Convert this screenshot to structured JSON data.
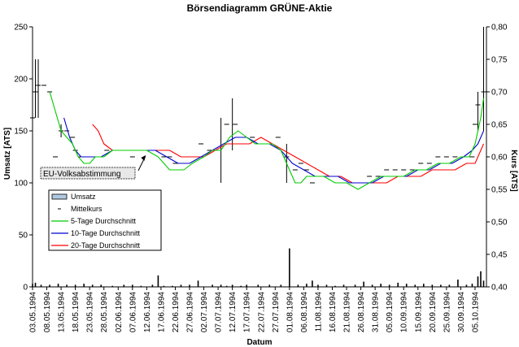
{
  "chart_data": {
    "type": "line",
    "title": "Börsendiagramm GRÜNE-Aktie",
    "xlabel": "Datum",
    "ylabel_left": "Umsatz [ATS]",
    "ylabel_right": "Kurs [ATS]",
    "ylim_left": [
      0,
      250
    ],
    "ylim_right": [
      0.4,
      0.8
    ],
    "yticks_left": [
      "0",
      "50",
      "100",
      "150",
      "200",
      "250"
    ],
    "yticks_right": [
      "0,40",
      "0,45",
      "0,50",
      "0,55",
      "0,60",
      "0,65",
      "0,70",
      "0,75",
      "0,80"
    ],
    "x_start_day": 0,
    "x_end_day": 159,
    "xticks": [
      {
        "day": 0,
        "label": "03.05.1994"
      },
      {
        "day": 5,
        "label": "08.05.1994"
      },
      {
        "day": 10,
        "label": "13.05.1994"
      },
      {
        "day": 15,
        "label": "18.05.1994"
      },
      {
        "day": 20,
        "label": "23.05.1994"
      },
      {
        "day": 25,
        "label": "28.05.1994"
      },
      {
        "day": 30,
        "label": "02.06.1994"
      },
      {
        "day": 35,
        "label": "07.06.1994"
      },
      {
        "day": 40,
        "label": "12.06.1994"
      },
      {
        "day": 45,
        "label": "17.06.1994"
      },
      {
        "day": 50,
        "label": "22.06.1994"
      },
      {
        "day": 55,
        "label": "27.06.1994"
      },
      {
        "day": 60,
        "label": "02.07.1994"
      },
      {
        "day": 65,
        "label": "07.07.1994"
      },
      {
        "day": 70,
        "label": "12.07.1994"
      },
      {
        "day": 75,
        "label": "17.07.1994"
      },
      {
        "day": 80,
        "label": "22.07.1994"
      },
      {
        "day": 85,
        "label": "27.07.1994"
      },
      {
        "day": 90,
        "label": "01.08.1994"
      },
      {
        "day": 95,
        "label": "06.08.1994"
      },
      {
        "day": 100,
        "label": "11.08.1994"
      },
      {
        "day": 105,
        "label": "16.08.1994"
      },
      {
        "day": 110,
        "label": "21.08.1994"
      },
      {
        "day": 115,
        "label": "26.08.1994"
      },
      {
        "day": 120,
        "label": "31.08.1994"
      },
      {
        "day": 125,
        "label": "05.09.1994"
      },
      {
        "day": 130,
        "label": "10.09.1994"
      },
      {
        "day": 135,
        "label": "15.09.1994"
      },
      {
        "day": 140,
        "label": "20.09.1994"
      },
      {
        "day": 145,
        "label": "25.09.1994"
      },
      {
        "day": 150,
        "label": "30.09.1994"
      },
      {
        "day": 155,
        "label": "05.10.1994"
      }
    ],
    "legend": [
      {
        "key": "umsatz",
        "label": "Umsatz"
      },
      {
        "key": "mittel",
        "label": "Mittelkurs"
      },
      {
        "key": "ma5",
        "label": "5-Tage Durchschnitt"
      },
      {
        "key": "ma10",
        "label": "10-Tage Durchschnitt"
      },
      {
        "key": "ma20",
        "label": "20-Tage Durchschnitt"
      }
    ],
    "colors": {
      "ma5": "#00cc00",
      "ma10": "#0000cc",
      "ma20": "#ff0000",
      "umsatz": "#000000",
      "mittel": "#000000"
    },
    "annotation": {
      "text": "EU-Volksabstimmung",
      "day": 40
    },
    "umsatz": [
      [
        0,
        3
      ],
      [
        1,
        4
      ],
      [
        3,
        2
      ],
      [
        6,
        2
      ],
      [
        9,
        3
      ],
      [
        12,
        2
      ],
      [
        15,
        2
      ],
      [
        18,
        3
      ],
      [
        21,
        2
      ],
      [
        24,
        2
      ],
      [
        28,
        1
      ],
      [
        32,
        2
      ],
      [
        35,
        2
      ],
      [
        38,
        1
      ],
      [
        42,
        2
      ],
      [
        44,
        11
      ],
      [
        46,
        1
      ],
      [
        49,
        1
      ],
      [
        52,
        2
      ],
      [
        55,
        2
      ],
      [
        58,
        6
      ],
      [
        63,
        2
      ],
      [
        66,
        2
      ],
      [
        68,
        1
      ],
      [
        70,
        2
      ],
      [
        73,
        1
      ],
      [
        75,
        2
      ],
      [
        79,
        2
      ],
      [
        83,
        2
      ],
      [
        87,
        2
      ],
      [
        90,
        37
      ],
      [
        93,
        2
      ],
      [
        96,
        3
      ],
      [
        98,
        6
      ],
      [
        100,
        2
      ],
      [
        103,
        2
      ],
      [
        106,
        1
      ],
      [
        109,
        2
      ],
      [
        113,
        2
      ],
      [
        116,
        5
      ],
      [
        119,
        2
      ],
      [
        122,
        3
      ],
      [
        125,
        2
      ],
      [
        128,
        4
      ],
      [
        131,
        3
      ],
      [
        134,
        2
      ],
      [
        137,
        3
      ],
      [
        140,
        2
      ],
      [
        143,
        2
      ],
      [
        146,
        2
      ],
      [
        149,
        7
      ],
      [
        152,
        2
      ],
      [
        154,
        3
      ],
      [
        156,
        10
      ],
      [
        157,
        15
      ],
      [
        158,
        6
      ]
    ],
    "mittelkurs": [
      [
        0,
        0.66
      ],
      [
        1,
        0.7
      ],
      [
        2,
        0.71
      ],
      [
        4,
        0.71
      ],
      [
        6,
        0.7
      ],
      [
        8,
        0.6
      ],
      [
        10,
        0.64
      ],
      [
        12,
        0.64
      ],
      [
        14,
        0.63
      ],
      [
        15,
        0.61
      ],
      [
        17,
        0.6
      ],
      [
        20,
        0.6
      ],
      [
        23,
        0.6
      ],
      [
        26,
        0.61
      ],
      [
        29,
        0.61
      ],
      [
        32,
        0.61
      ],
      [
        35,
        0.6
      ],
      [
        38,
        0.61
      ],
      [
        41,
        0.61
      ],
      [
        44,
        0.61
      ],
      [
        46,
        0.6
      ],
      [
        48,
        0.6
      ],
      [
        50,
        0.59
      ],
      [
        53,
        0.6
      ],
      [
        56,
        0.6
      ],
      [
        59,
        0.62
      ],
      [
        62,
        0.61
      ],
      [
        65,
        0.61
      ],
      [
        68,
        0.65
      ],
      [
        71,
        0.65
      ],
      [
        74,
        0.62
      ],
      [
        77,
        0.63
      ],
      [
        80,
        0.62
      ],
      [
        83,
        0.62
      ],
      [
        86,
        0.63
      ],
      [
        89,
        0.6
      ],
      [
        92,
        0.58
      ],
      [
        94,
        0.59
      ],
      [
        96,
        0.58
      ],
      [
        98,
        0.56
      ],
      [
        100,
        0.57
      ],
      [
        103,
        0.57
      ],
      [
        106,
        0.57
      ],
      [
        109,
        0.56
      ],
      [
        112,
        0.56
      ],
      [
        115,
        0.56
      ],
      [
        118,
        0.57
      ],
      [
        121,
        0.57
      ],
      [
        124,
        0.58
      ],
      [
        127,
        0.58
      ],
      [
        130,
        0.58
      ],
      [
        133,
        0.58
      ],
      [
        136,
        0.59
      ],
      [
        139,
        0.59
      ],
      [
        142,
        0.6
      ],
      [
        145,
        0.6
      ],
      [
        148,
        0.6
      ],
      [
        151,
        0.6
      ],
      [
        154,
        0.6
      ],
      [
        155,
        0.65
      ],
      [
        156,
        0.68
      ],
      [
        158,
        0.7
      ]
    ],
    "high_low": [
      [
        0,
        0.65,
        0.75
      ],
      [
        1,
        0.66,
        0.75
      ],
      [
        2,
        0.66,
        0.75
      ],
      [
        10,
        0.63,
        0.65
      ],
      [
        66,
        0.56,
        0.66
      ],
      [
        70,
        0.61,
        0.69
      ],
      [
        89,
        0.56,
        0.62
      ],
      [
        156,
        0.64,
        0.7
      ],
      [
        158,
        0.64,
        0.8
      ]
    ],
    "ma5": [
      [
        6,
        0.7
      ],
      [
        8,
        0.67
      ],
      [
        10,
        0.64
      ],
      [
        12,
        0.63
      ],
      [
        14,
        0.62
      ],
      [
        16,
        0.6
      ],
      [
        18,
        0.59
      ],
      [
        20,
        0.59
      ],
      [
        22,
        0.6
      ],
      [
        25,
        0.6
      ],
      [
        28,
        0.61
      ],
      [
        32,
        0.61
      ],
      [
        36,
        0.61
      ],
      [
        40,
        0.61
      ],
      [
        44,
        0.6
      ],
      [
        48,
        0.58
      ],
      [
        50,
        0.58
      ],
      [
        53,
        0.58
      ],
      [
        56,
        0.59
      ],
      [
        60,
        0.6
      ],
      [
        63,
        0.61
      ],
      [
        66,
        0.61
      ],
      [
        69,
        0.63
      ],
      [
        72,
        0.64
      ],
      [
        75,
        0.63
      ],
      [
        78,
        0.62
      ],
      [
        81,
        0.62
      ],
      [
        84,
        0.62
      ],
      [
        87,
        0.61
      ],
      [
        90,
        0.58
      ],
      [
        92,
        0.56
      ],
      [
        94,
        0.56
      ],
      [
        96,
        0.57
      ],
      [
        99,
        0.57
      ],
      [
        102,
        0.57
      ],
      [
        106,
        0.56
      ],
      [
        110,
        0.56
      ],
      [
        114,
        0.55
      ],
      [
        118,
        0.56
      ],
      [
        122,
        0.57
      ],
      [
        126,
        0.57
      ],
      [
        130,
        0.57
      ],
      [
        134,
        0.58
      ],
      [
        138,
        0.58
      ],
      [
        142,
        0.59
      ],
      [
        146,
        0.59
      ],
      [
        150,
        0.6
      ],
      [
        153,
        0.6
      ],
      [
        155,
        0.62
      ],
      [
        157,
        0.66
      ],
      [
        158,
        0.69
      ]
    ],
    "ma10": [
      [
        11,
        0.66
      ],
      [
        13,
        0.63
      ],
      [
        15,
        0.61
      ],
      [
        17,
        0.6
      ],
      [
        20,
        0.6
      ],
      [
        24,
        0.6
      ],
      [
        28,
        0.61
      ],
      [
        33,
        0.61
      ],
      [
        38,
        0.61
      ],
      [
        43,
        0.61
      ],
      [
        47,
        0.6
      ],
      [
        51,
        0.59
      ],
      [
        55,
        0.59
      ],
      [
        59,
        0.6
      ],
      [
        63,
        0.61
      ],
      [
        67,
        0.62
      ],
      [
        71,
        0.63
      ],
      [
        75,
        0.63
      ],
      [
        79,
        0.62
      ],
      [
        83,
        0.62
      ],
      [
        87,
        0.61
      ],
      [
        91,
        0.59
      ],
      [
        95,
        0.58
      ],
      [
        99,
        0.57
      ],
      [
        103,
        0.57
      ],
      [
        107,
        0.57
      ],
      [
        111,
        0.56
      ],
      [
        115,
        0.56
      ],
      [
        119,
        0.56
      ],
      [
        123,
        0.57
      ],
      [
        127,
        0.57
      ],
      [
        131,
        0.57
      ],
      [
        135,
        0.58
      ],
      [
        139,
        0.58
      ],
      [
        143,
        0.59
      ],
      [
        147,
        0.59
      ],
      [
        151,
        0.6
      ],
      [
        154,
        0.61
      ],
      [
        156,
        0.62
      ],
      [
        158,
        0.64
      ]
    ],
    "ma20": [
      [
        21,
        0.65
      ],
      [
        23,
        0.64
      ],
      [
        25,
        0.62
      ],
      [
        28,
        0.61
      ],
      [
        32,
        0.61
      ],
      [
        36,
        0.61
      ],
      [
        40,
        0.61
      ],
      [
        44,
        0.61
      ],
      [
        48,
        0.61
      ],
      [
        52,
        0.6
      ],
      [
        56,
        0.6
      ],
      [
        60,
        0.6
      ],
      [
        64,
        0.61
      ],
      [
        68,
        0.62
      ],
      [
        72,
        0.62
      ],
      [
        76,
        0.62
      ],
      [
        80,
        0.63
      ],
      [
        84,
        0.62
      ],
      [
        88,
        0.61
      ],
      [
        92,
        0.6
      ],
      [
        96,
        0.59
      ],
      [
        100,
        0.58
      ],
      [
        104,
        0.57
      ],
      [
        108,
        0.57
      ],
      [
        112,
        0.56
      ],
      [
        116,
        0.56
      ],
      [
        120,
        0.56
      ],
      [
        124,
        0.56
      ],
      [
        128,
        0.57
      ],
      [
        132,
        0.57
      ],
      [
        136,
        0.57
      ],
      [
        140,
        0.58
      ],
      [
        144,
        0.58
      ],
      [
        148,
        0.58
      ],
      [
        152,
        0.59
      ],
      [
        155,
        0.59
      ],
      [
        157,
        0.61
      ],
      [
        158,
        0.62
      ]
    ]
  }
}
